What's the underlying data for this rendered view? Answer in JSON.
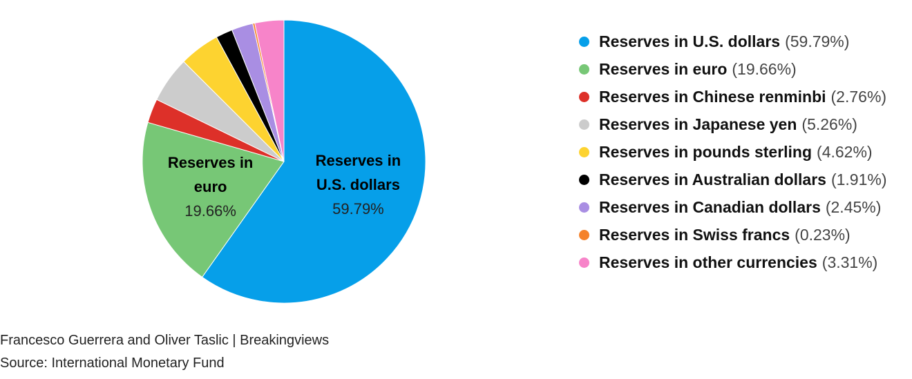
{
  "chart_data": {
    "type": "pie",
    "categories": [
      "Reserves in U.S. dollars",
      "Reserves in euro",
      "Reserves in Chinese renminbi",
      "Reserves in Japanese yen",
      "Reserves in pounds sterling",
      "Reserves in Australian dollars",
      "Reserves in Canadian dollars",
      "Reserves in Swiss francs",
      "Reserves in other currencies"
    ],
    "values": [
      59.79,
      19.66,
      2.76,
      5.26,
      4.62,
      1.91,
      2.45,
      0.23,
      3.31
    ],
    "value_labels": [
      "59.79%",
      "19.66%",
      "2.76%",
      "5.26%",
      "4.62%",
      "1.91%",
      "2.45%",
      "0.23%",
      "3.31%"
    ],
    "legend_value_labels": [
      "(59.79%)",
      "(19.66%)",
      "(2.76%)",
      "(5.26%)",
      "(4.62%)",
      "(1.91%)",
      "(2.45%)",
      "(0.23%)",
      "(3.31%)"
    ],
    "colors": [
      "#069fe9",
      "#77c776",
      "#dd3029",
      "#cccccc",
      "#fdd330",
      "#000000",
      "#a98ee3",
      "#f5822a",
      "#f784c9"
    ],
    "footer": [
      "Francesco Guerrera and Oliver Taslic | Breakingviews",
      "Source: International Monetary Fund"
    ]
  }
}
